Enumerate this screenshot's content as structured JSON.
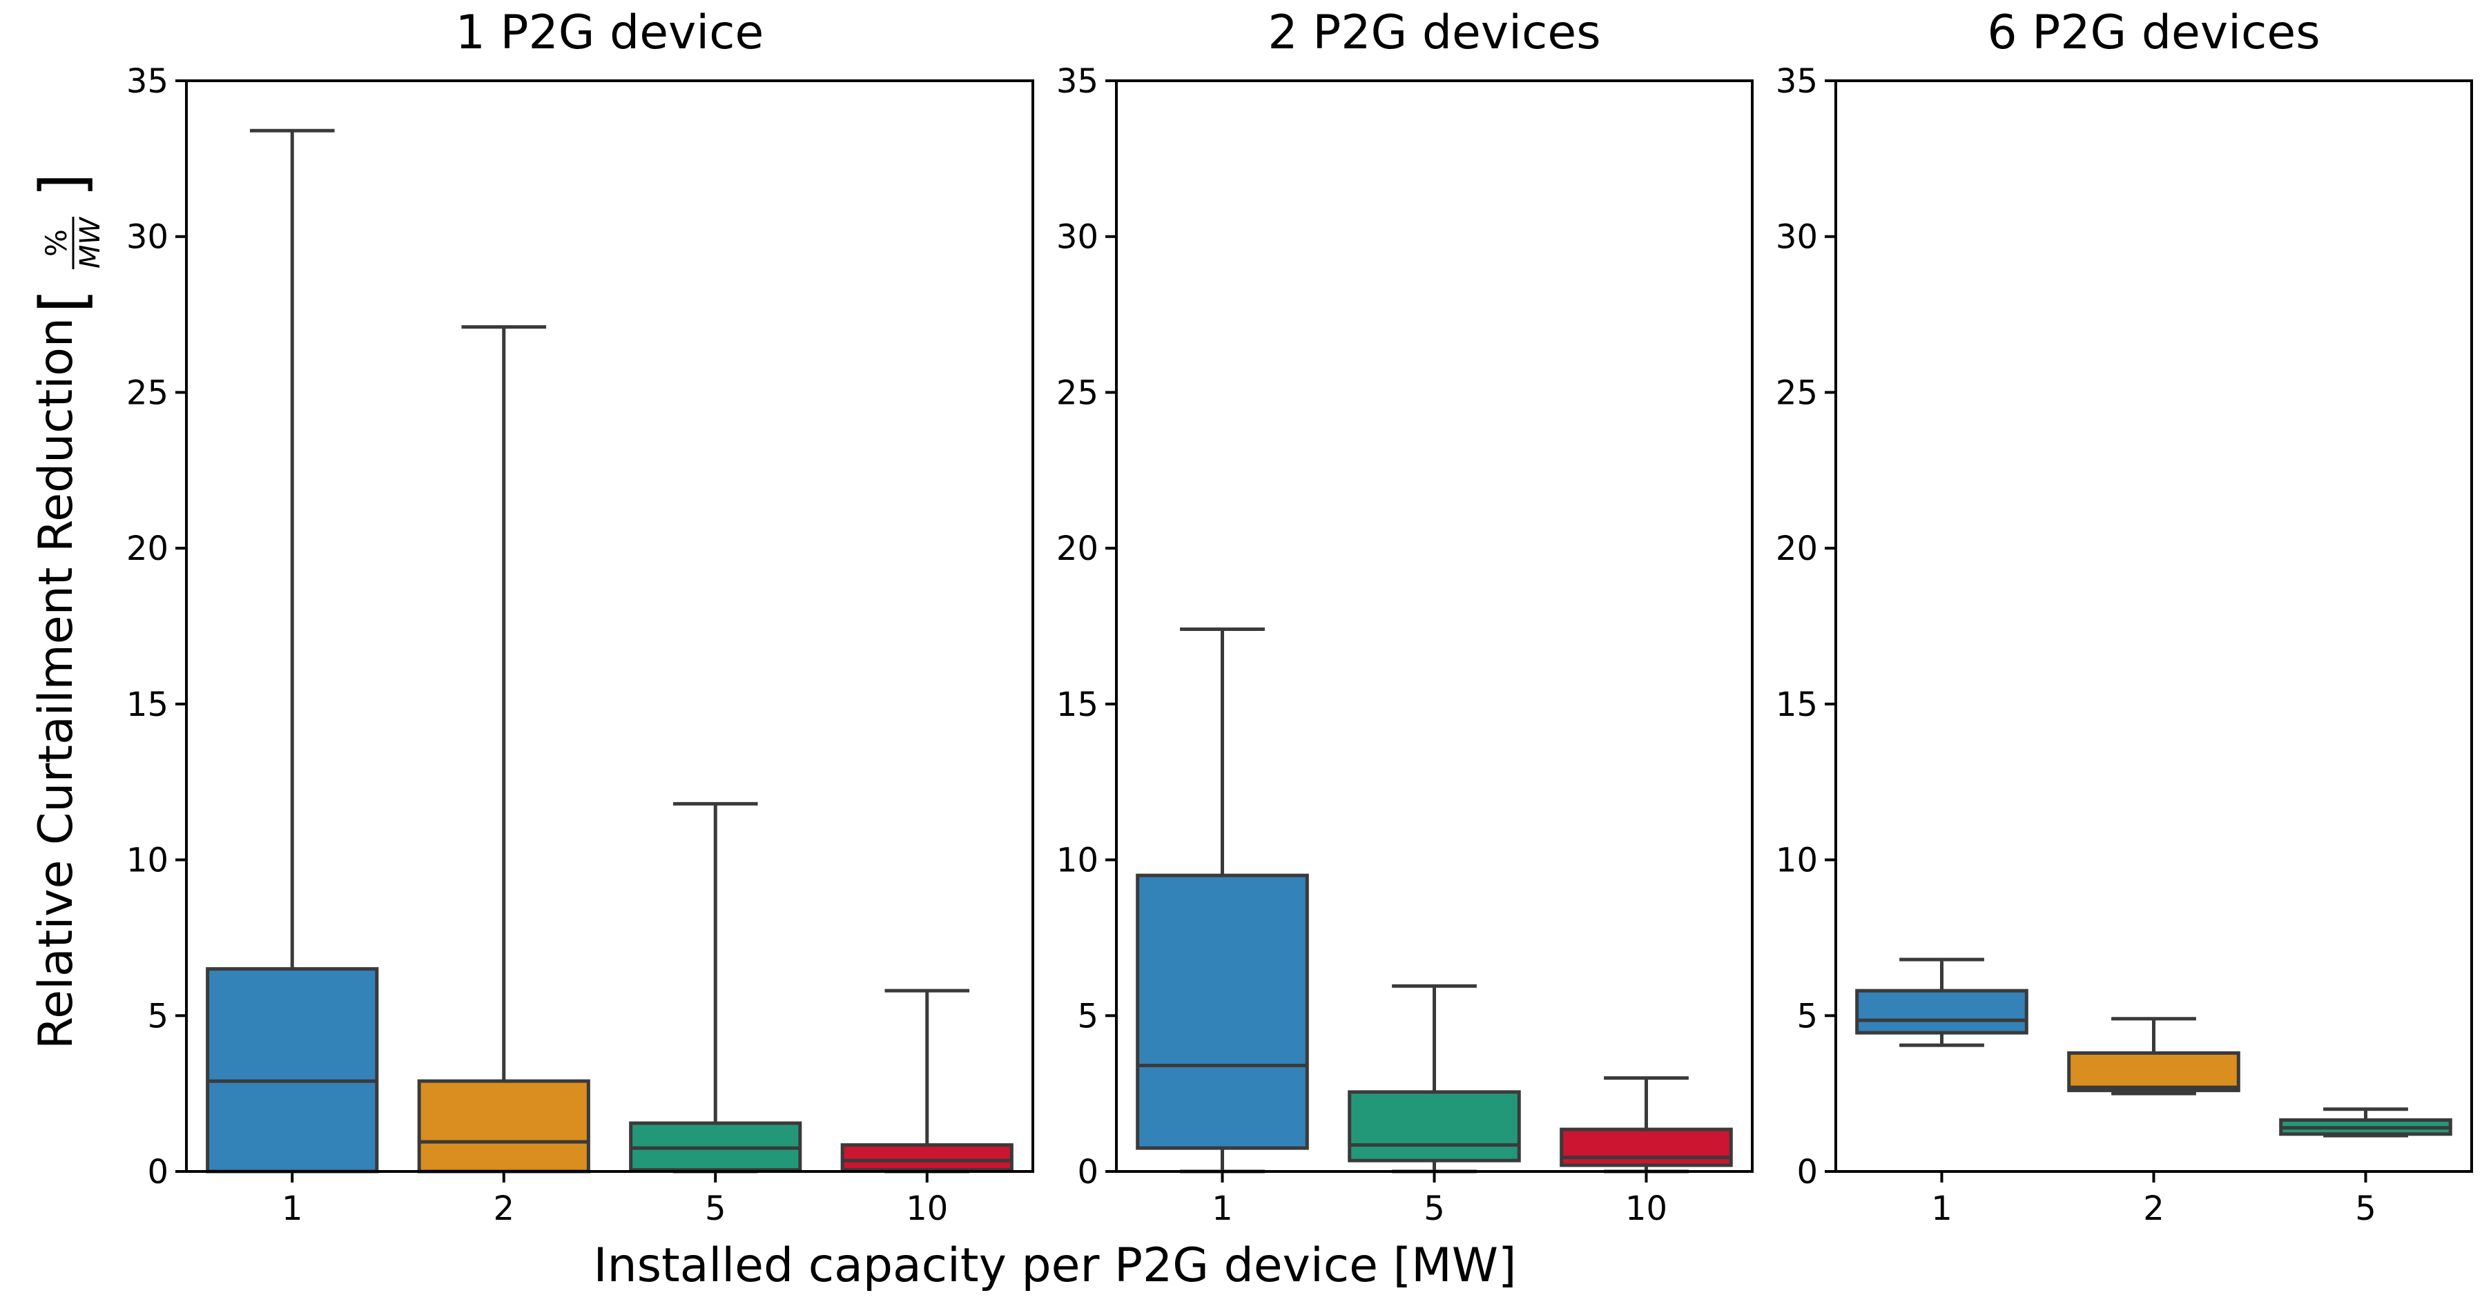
{
  "chart_data": {
    "type": "box",
    "ylabel": "Relative Curtailment Reduction",
    "ylabel_unit_numerator": "%",
    "ylabel_unit_denominator": "MW",
    "xlabel": "Installed capacity per P2G device [MW]",
    "ylim": [
      0,
      35
    ],
    "yticks": [
      0,
      5,
      10,
      15,
      20,
      25,
      30,
      35
    ],
    "colors": {
      "1": "#3382b8",
      "2": "#d98e1f",
      "5": "#239878",
      "10": "#cb1531"
    },
    "panels": [
      {
        "title": "1 P2G device",
        "categories": [
          "1",
          "2",
          "5",
          "10"
        ],
        "boxes": [
          {
            "category": "1",
            "whisker_low": 0,
            "q1": 0,
            "median": 2.9,
            "q3": 6.5,
            "whisker_high": 33.4
          },
          {
            "category": "2",
            "whisker_low": 0,
            "q1": 0,
            "median": 0.95,
            "q3": 2.9,
            "whisker_high": 27.1
          },
          {
            "category": "5",
            "whisker_low": 0,
            "q1": 0.05,
            "median": 0.75,
            "q3": 1.55,
            "whisker_high": 11.8
          },
          {
            "category": "10",
            "whisker_low": 0,
            "q1": 0.05,
            "median": 0.35,
            "q3": 0.85,
            "whisker_high": 5.8
          }
        ]
      },
      {
        "title": "2 P2G devices",
        "categories": [
          "1",
          "5",
          "10"
        ],
        "boxes": [
          {
            "category": "1",
            "whisker_low": 0,
            "q1": 0.75,
            "median": 3.4,
            "q3": 9.5,
            "whisker_high": 17.4
          },
          {
            "category": "5",
            "whisker_low": 0,
            "q1": 0.35,
            "median": 0.85,
            "q3": 2.55,
            "whisker_high": 5.95
          },
          {
            "category": "10",
            "whisker_low": 0,
            "q1": 0.2,
            "median": 0.45,
            "q3": 1.35,
            "whisker_high": 3.0
          }
        ]
      },
      {
        "title": "6 P2G devices",
        "categories": [
          "1",
          "2",
          "5"
        ],
        "boxes": [
          {
            "category": "1",
            "whisker_low": 4.05,
            "q1": 4.45,
            "median": 4.85,
            "q3": 5.8,
            "whisker_high": 6.8
          },
          {
            "category": "2",
            "whisker_low": 2.5,
            "q1": 2.6,
            "median": 2.7,
            "q3": 3.8,
            "whisker_high": 4.9
          },
          {
            "category": "5",
            "whisker_low": 1.15,
            "q1": 1.2,
            "median": 1.4,
            "q3": 1.65,
            "whisker_high": 2.0
          }
        ]
      }
    ]
  }
}
